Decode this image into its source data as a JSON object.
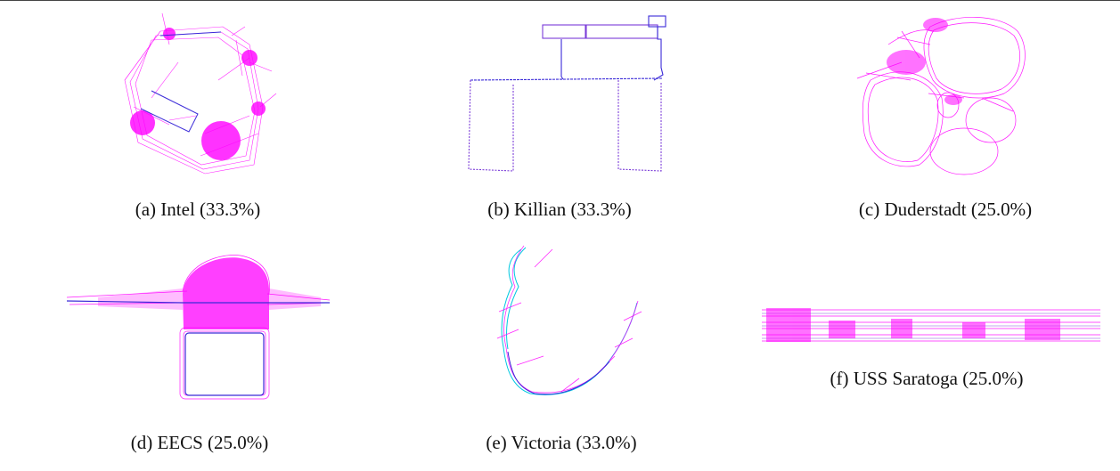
{
  "figures": [
    {
      "key": "a",
      "caption": "(a) Intel (33.3%)"
    },
    {
      "key": "b",
      "caption": "(b) Killian (33.3%)"
    },
    {
      "key": "c",
      "caption": "(c) Duderstadt (25.0%)"
    },
    {
      "key": "d",
      "caption": "(d) EECS (25.0%)"
    },
    {
      "key": "e",
      "caption": "(e) Victoria (33.0%)"
    },
    {
      "key": "f",
      "caption": "(f) USS Saratoga (25.0%)"
    }
  ],
  "colors": {
    "magenta": "#ff00ff",
    "blue": "#3b2bd8",
    "cyan": "#00c8e0",
    "purple": "#7a3bd8",
    "rule": "#444444"
  }
}
